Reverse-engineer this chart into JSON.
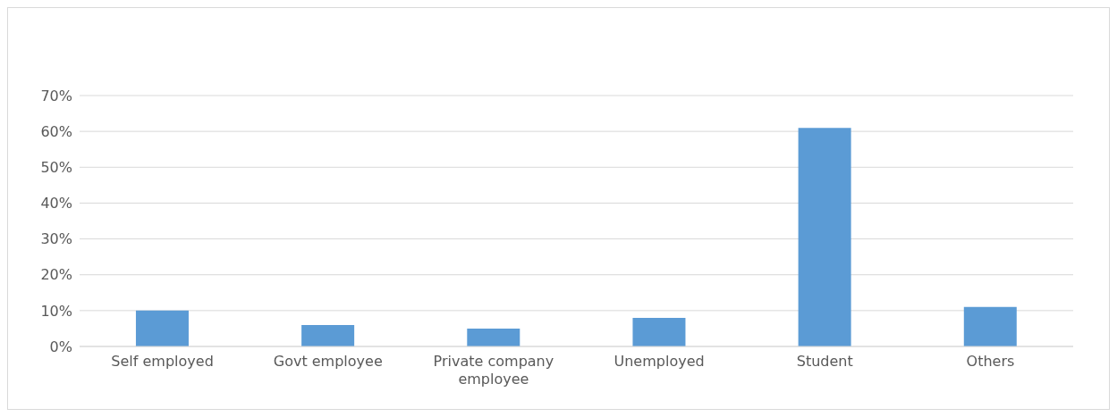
{
  "chart_data": {
    "type": "bar",
    "categories": [
      "Self employed",
      "Govt employee",
      "Private company employee",
      "Unemployed",
      "Student",
      "Others"
    ],
    "values": [
      10,
      6,
      5,
      8,
      61,
      11
    ],
    "color": "#5b9bd5",
    "ylim": [
      0,
      70
    ],
    "yticks": [
      {
        "value": 0,
        "label": "0%"
      },
      {
        "value": 10,
        "label": "10%"
      },
      {
        "value": 20,
        "label": "20%"
      },
      {
        "value": 30,
        "label": "30%"
      },
      {
        "value": 40,
        "label": "40%"
      },
      {
        "value": 50,
        "label": "50%"
      },
      {
        "value": 60,
        "label": "60%"
      },
      {
        "value": 70,
        "label": "70%"
      }
    ],
    "grid": "y",
    "legend": false
  }
}
